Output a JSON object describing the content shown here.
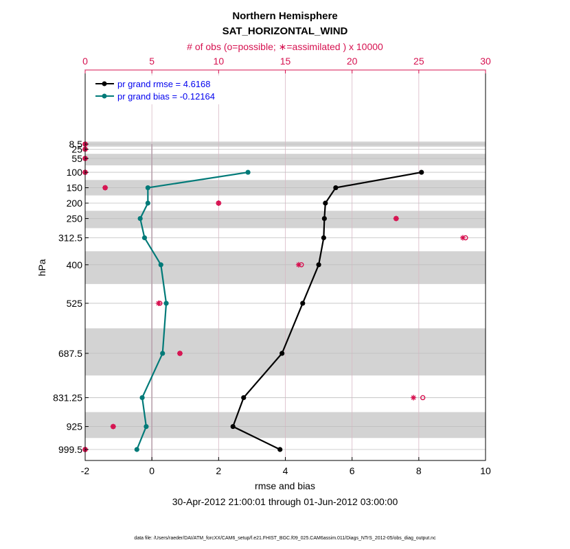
{
  "chart_data": {
    "type": "line",
    "title": "Northern Hemisphere",
    "subtitle": "SAT_HORIZONTAL_WIND",
    "top_axis_label": "# of obs (o=possible; ∗=assimilated ) x 10000",
    "xlabel": "rmse and bias",
    "ylabel": "hPa",
    "date_range": "30-Apr-2012 21:00:01 through 01-Jun-2012 03:00:00",
    "footnote": "data file: /Users/raeder/DAI/ATM_forcXX/CAM6_setup/f.e21.FHIST_BGC.f09_025.CAM6assim.011/Diags_NTrS_2012-05/obs_diag_output.nc",
    "xlim": [
      -2,
      10
    ],
    "xticks": [
      -2,
      0,
      2,
      4,
      6,
      8,
      10
    ],
    "top_xlim": [
      0,
      30
    ],
    "top_xticks": [
      0,
      5,
      10,
      15,
      20,
      25,
      30
    ],
    "levels": [
      8.5,
      25,
      55,
      100,
      150,
      200,
      250,
      312.5,
      400,
      525,
      687.5,
      831.25,
      925,
      999.5
    ],
    "level_labels": [
      "8.5",
      "25",
      "55",
      "100",
      "150",
      "200",
      "250",
      "312.5",
      "400",
      "525",
      "687.5",
      "831.25",
      "925",
      "999.5"
    ],
    "legend_position": "top-left",
    "grid": true,
    "series": [
      {
        "name": "pr grand rmse = 4.6168",
        "color": "#000000",
        "levels": [
          100,
          150,
          200,
          250,
          312.5,
          400,
          525,
          687.5,
          831.25,
          925,
          999.5
        ],
        "values": [
          8.08,
          5.51,
          5.2,
          5.17,
          5.15,
          5.0,
          4.52,
          3.9,
          2.75,
          2.43,
          3.84
        ]
      },
      {
        "name": "pr grand bias = -0.12164",
        "color": "#007a78",
        "levels": [
          100,
          150,
          200,
          250,
          312.5,
          400,
          525,
          687.5,
          831.25,
          925,
          999.5
        ],
        "values": [
          2.88,
          -0.12,
          -0.12,
          -0.35,
          -0.22,
          0.27,
          0.43,
          0.32,
          -0.29,
          -0.17,
          -0.45
        ]
      }
    ],
    "obs_counts": {
      "color": "#d6104f",
      "levels": [
        8.5,
        25,
        55,
        100,
        150,
        200,
        250,
        312.5,
        400,
        525,
        687.5,
        831.25,
        925,
        999.5
      ],
      "possible": [
        0,
        0,
        0,
        0,
        1.5,
        10.0,
        23.3,
        28.5,
        16.2,
        5.6,
        7.1,
        25.3,
        2.1,
        0
      ],
      "assimilated": [
        0,
        0,
        0,
        0,
        1.5,
        10.0,
        23.3,
        28.3,
        16.0,
        5.5,
        7.1,
        24.6,
        2.1,
        0
      ]
    }
  }
}
